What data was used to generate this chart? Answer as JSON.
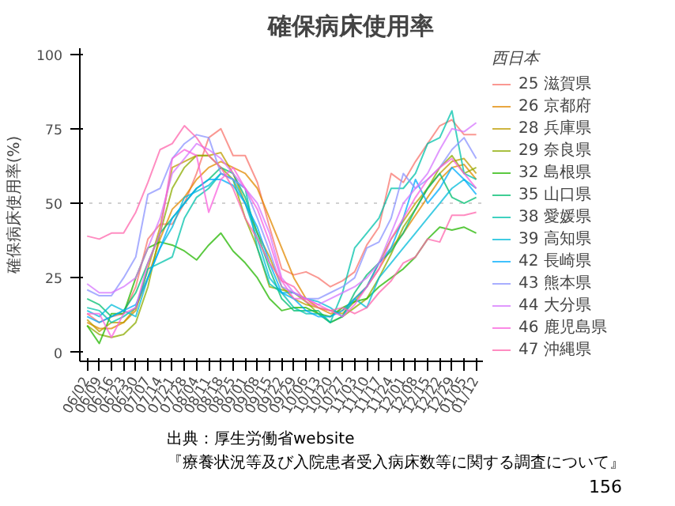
{
  "chart_data": {
    "type": "line",
    "title": "確保病床使用率",
    "ylabel": "確保病床使用率(%)",
    "legend_title": "西日本",
    "legend": "right",
    "grid": false,
    "marker": "none",
    "line_style": "solid",
    "categories": [
      "06/02",
      "06/09",
      "06/16",
      "06/23",
      "06/30",
      "07/07",
      "07/14",
      "07/21",
      "07/28",
      "08/04",
      "08/11",
      "08/18",
      "08/25",
      "09/01",
      "09/08",
      "09/15",
      "09/22",
      "09/29",
      "10/06",
      "10/13",
      "10/20",
      "10/27",
      "11/03",
      "11/10",
      "11/17",
      "11/24",
      "12/01",
      "12/08",
      "12/15",
      "12/22",
      "12/29",
      "01/05",
      "01/12"
    ],
    "ylim": [
      -3,
      102
    ],
    "yticks": [
      0,
      25,
      50,
      75,
      100
    ],
    "ref_lines": [
      {
        "axis": "y",
        "value": 50,
        "label": null,
        "color": "#d0d0d0",
        "line_style": "dotted"
      }
    ],
    "annotations": [
      "出典：厚生労働省website",
      "『療養状況等及び入院患者受入病床数等に関する調査について』",
      "156"
    ],
    "series": [
      {
        "name": "25 滋賀県",
        "color": "#F8766D",
        "values": [
          13,
          10,
          12,
          13,
          22,
          38,
          43,
          43,
          50,
          60,
          72,
          75,
          66,
          66,
          57,
          42,
          28,
          26,
          27,
          25,
          22,
          24,
          27,
          36,
          42,
          60,
          57,
          64,
          70,
          76,
          78,
          73,
          73
        ]
      },
      {
        "name": "26 京都府",
        "color": "#E18A00",
        "values": [
          10,
          8,
          8,
          10,
          15,
          25,
          38,
          48,
          52,
          58,
          62,
          64,
          62,
          60,
          55,
          45,
          35,
          25,
          18,
          15,
          13,
          14,
          18,
          22,
          28,
          35,
          40,
          46,
          52,
          58,
          62,
          63,
          58
        ]
      },
      {
        "name": "28 兵庫県",
        "color": "#BE9C00",
        "values": [
          11,
          7,
          10,
          10,
          14,
          28,
          42,
          62,
          64,
          66,
          66,
          67,
          60,
          50,
          40,
          32,
          22,
          18,
          16,
          15,
          14,
          13,
          17,
          22,
          30,
          38,
          44,
          50,
          55,
          60,
          64,
          65,
          60
        ]
      },
      {
        "name": "29 奈良県",
        "color": "#8CAB00",
        "values": [
          9,
          6,
          5,
          6,
          10,
          22,
          40,
          55,
          62,
          66,
          66,
          62,
          58,
          45,
          35,
          22,
          21,
          20,
          17,
          13,
          10,
          12,
          15,
          18,
          25,
          33,
          42,
          48,
          55,
          62,
          66,
          60,
          62
        ]
      },
      {
        "name": "32 島根県",
        "color": "#24B700",
        "values": [
          9,
          3,
          13,
          13,
          25,
          35,
          37,
          36,
          34,
          31,
          36,
          40,
          34,
          30,
          25,
          18,
          14,
          15,
          15,
          13,
          12,
          15,
          17,
          18,
          22,
          25,
          28,
          32,
          38,
          42,
          41,
          42,
          40
        ]
      },
      {
        "name": "35 山口県",
        "color": "#00BE70",
        "values": [
          18,
          16,
          12,
          14,
          20,
          30,
          40,
          45,
          50,
          55,
          58,
          62,
          60,
          52,
          40,
          28,
          18,
          14,
          14,
          14,
          10,
          12,
          20,
          26,
          30,
          34,
          40,
          48,
          55,
          60,
          52,
          50,
          52
        ]
      },
      {
        "name": "38 愛媛県",
        "color": "#00C1AB",
        "values": [
          15,
          14,
          10,
          12,
          15,
          28,
          30,
          32,
          45,
          52,
          55,
          60,
          58,
          55,
          35,
          23,
          20,
          15,
          13,
          13,
          10,
          20,
          35,
          40,
          45,
          55,
          55,
          60,
          70,
          72,
          81,
          60,
          58
        ]
      },
      {
        "name": "39 高知県",
        "color": "#00BBDA",
        "values": [
          14,
          12,
          16,
          14,
          12,
          25,
          35,
          42,
          52,
          54,
          56,
          60,
          58,
          50,
          38,
          25,
          20,
          20,
          18,
          17,
          15,
          12,
          18,
          15,
          25,
          30,
          35,
          40,
          45,
          50,
          55,
          58,
          55
        ]
      },
      {
        "name": "42 長崎県",
        "color": "#00ACFC",
        "values": [
          12,
          10,
          12,
          14,
          16,
          25,
          35,
          45,
          50,
          55,
          58,
          58,
          56,
          50,
          42,
          30,
          20,
          18,
          14,
          12,
          12,
          14,
          18,
          22,
          30,
          35,
          45,
          58,
          50,
          55,
          62,
          58,
          53
        ]
      },
      {
        "name": "43 熊本県",
        "color": "#8B93FF",
        "values": [
          21,
          19,
          19,
          25,
          32,
          53,
          55,
          65,
          70,
          73,
          72,
          60,
          58,
          55,
          45,
          34,
          22,
          20,
          18,
          18,
          20,
          22,
          25,
          35,
          37,
          45,
          60,
          55,
          58,
          62,
          68,
          72,
          65
        ]
      },
      {
        "name": "44 大分県",
        "color": "#D575FE",
        "values": [
          23,
          20,
          20,
          22,
          25,
          35,
          45,
          60,
          65,
          70,
          68,
          65,
          60,
          55,
          50,
          40,
          25,
          20,
          18,
          16,
          18,
          20,
          22,
          25,
          30,
          40,
          50,
          55,
          60,
          68,
          75,
          74,
          77
        ]
      },
      {
        "name": "46 鹿児島県",
        "color": "#F962DD",
        "values": [
          13,
          13,
          5,
          13,
          15,
          30,
          40,
          65,
          68,
          66,
          47,
          58,
          62,
          55,
          48,
          37,
          24,
          18,
          18,
          16,
          14,
          12,
          16,
          22,
          28,
          38,
          45,
          52,
          58,
          62,
          65,
          60,
          55
        ]
      },
      {
        "name": "47 沖縄県",
        "color": "#FF65AC",
        "values": [
          39,
          38,
          40,
          40,
          47,
          57,
          68,
          70,
          76,
          72,
          66,
          62,
          55,
          45,
          38,
          30,
          24,
          22,
          17,
          15,
          14,
          15,
          13,
          15,
          20,
          24,
          30,
          32,
          38,
          37,
          46,
          46,
          47
        ]
      }
    ]
  }
}
